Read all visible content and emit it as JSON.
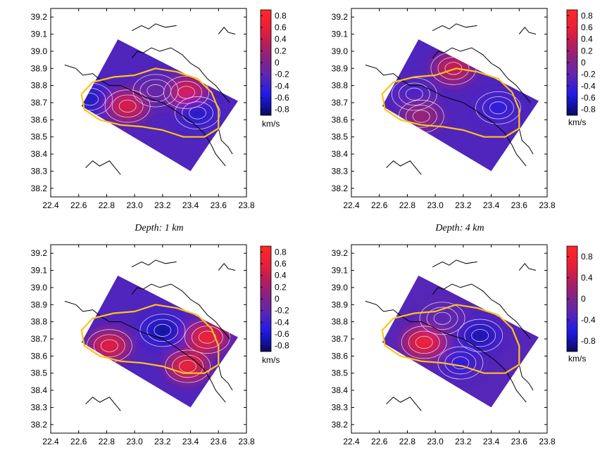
{
  "chart_data": [
    {
      "type": "heatmap",
      "caption": "Depth: 1 km",
      "xlim": [
        22.4,
        23.8
      ],
      "ylim": [
        38.15,
        39.25
      ],
      "xticks": [
        "22.4",
        "22.6",
        "22.8",
        "23.0",
        "23.2",
        "23.4",
        "23.6",
        "23.8"
      ],
      "yticks": [
        "38.2",
        "38.3",
        "38.4",
        "38.5",
        "38.6",
        "38.7",
        "38.8",
        "38.9",
        "39.0",
        "39.1",
        "39.2"
      ],
      "colorbar": {
        "ticks": [
          "0.8",
          "0.6",
          "0.4",
          "0.2",
          "0",
          "-0.2",
          "-0.4",
          "-0.6",
          "-0.8"
        ],
        "unit": "km/s",
        "range": [
          -0.9,
          0.9
        ]
      },
      "anomalies": [
        {
          "lon": 22.68,
          "lat": 38.72,
          "value": -0.7
        },
        {
          "lon": 22.95,
          "lat": 38.68,
          "value": 0.55
        },
        {
          "lon": 23.37,
          "lat": 38.76,
          "value": 0.6
        },
        {
          "lon": 23.45,
          "lat": 38.64,
          "value": -0.65
        },
        {
          "lon": 23.15,
          "lat": 38.77,
          "value": -0.2
        }
      ]
    },
    {
      "type": "heatmap",
      "caption": "Depth: 4 km",
      "xlim": [
        22.4,
        23.8
      ],
      "ylim": [
        38.15,
        39.25
      ],
      "xticks": [
        "22.4",
        "22.6",
        "22.8",
        "23.0",
        "23.2",
        "23.4",
        "23.6",
        "23.8"
      ],
      "yticks": [
        "38.2",
        "38.3",
        "38.4",
        "38.5",
        "38.6",
        "38.7",
        "38.8",
        "38.9",
        "39.0",
        "39.1",
        "39.2"
      ],
      "colorbar": {
        "ticks": [
          "0.8",
          "0.6",
          "0.4",
          "0.2",
          "0",
          "-0.2",
          "-0.4",
          "-0.6",
          "-0.8"
        ],
        "unit": "km/s",
        "range": [
          -0.9,
          0.9
        ]
      },
      "anomalies": [
        {
          "lon": 23.13,
          "lat": 38.9,
          "value": 0.45
        },
        {
          "lon": 23.45,
          "lat": 38.67,
          "value": -0.55
        },
        {
          "lon": 22.85,
          "lat": 38.75,
          "value": -0.4
        },
        {
          "lon": 22.9,
          "lat": 38.62,
          "value": 0.15
        }
      ]
    },
    {
      "type": "heatmap",
      "caption": "",
      "xlim": [
        22.4,
        23.8
      ],
      "ylim": [
        38.15,
        39.25
      ],
      "xticks": [
        "22.4",
        "22.6",
        "22.8",
        "23.0",
        "23.2",
        "23.4",
        "23.6",
        "23.8"
      ],
      "yticks": [
        "38.2",
        "38.3",
        "38.4",
        "38.5",
        "38.6",
        "38.7",
        "38.8",
        "38.9",
        "39.0",
        "39.1",
        "39.2"
      ],
      "colorbar": {
        "ticks": [
          "0.8",
          "0.6",
          "0.4",
          "0.2",
          "0",
          "-0.2",
          "-0.4",
          "-0.6",
          "-0.8"
        ],
        "unit": "km/s",
        "range": [
          -0.9,
          0.9
        ]
      },
      "anomalies": [
        {
          "lon": 23.2,
          "lat": 38.75,
          "value": -0.85
        },
        {
          "lon": 22.82,
          "lat": 38.66,
          "value": 0.6
        },
        {
          "lon": 23.52,
          "lat": 38.71,
          "value": 0.75
        },
        {
          "lon": 23.38,
          "lat": 38.54,
          "value": 0.7
        }
      ]
    },
    {
      "type": "heatmap",
      "caption": "",
      "xlim": [
        22.4,
        23.8
      ],
      "ylim": [
        38.15,
        39.25
      ],
      "xticks": [
        "22.4",
        "22.6",
        "22.8",
        "23.0",
        "23.2",
        "23.4",
        "23.6",
        "23.8"
      ],
      "yticks": [
        "38.2",
        "38.3",
        "38.4",
        "38.5",
        "38.6",
        "38.7",
        "38.8",
        "38.9",
        "39.0",
        "39.1",
        "39.2"
      ],
      "colorbar": {
        "ticks": [
          "0.8",
          "0.4",
          "0",
          "-0.4",
          "-0.8"
        ],
        "unit": "km/s",
        "range": [
          -1.0,
          1.0
        ]
      },
      "anomalies": [
        {
          "lon": 22.92,
          "lat": 38.68,
          "value": 0.85
        },
        {
          "lon": 23.32,
          "lat": 38.72,
          "value": -0.85
        },
        {
          "lon": 23.18,
          "lat": 38.56,
          "value": -0.6
        },
        {
          "lon": 23.05,
          "lat": 38.82,
          "value": -0.3
        }
      ]
    }
  ]
}
